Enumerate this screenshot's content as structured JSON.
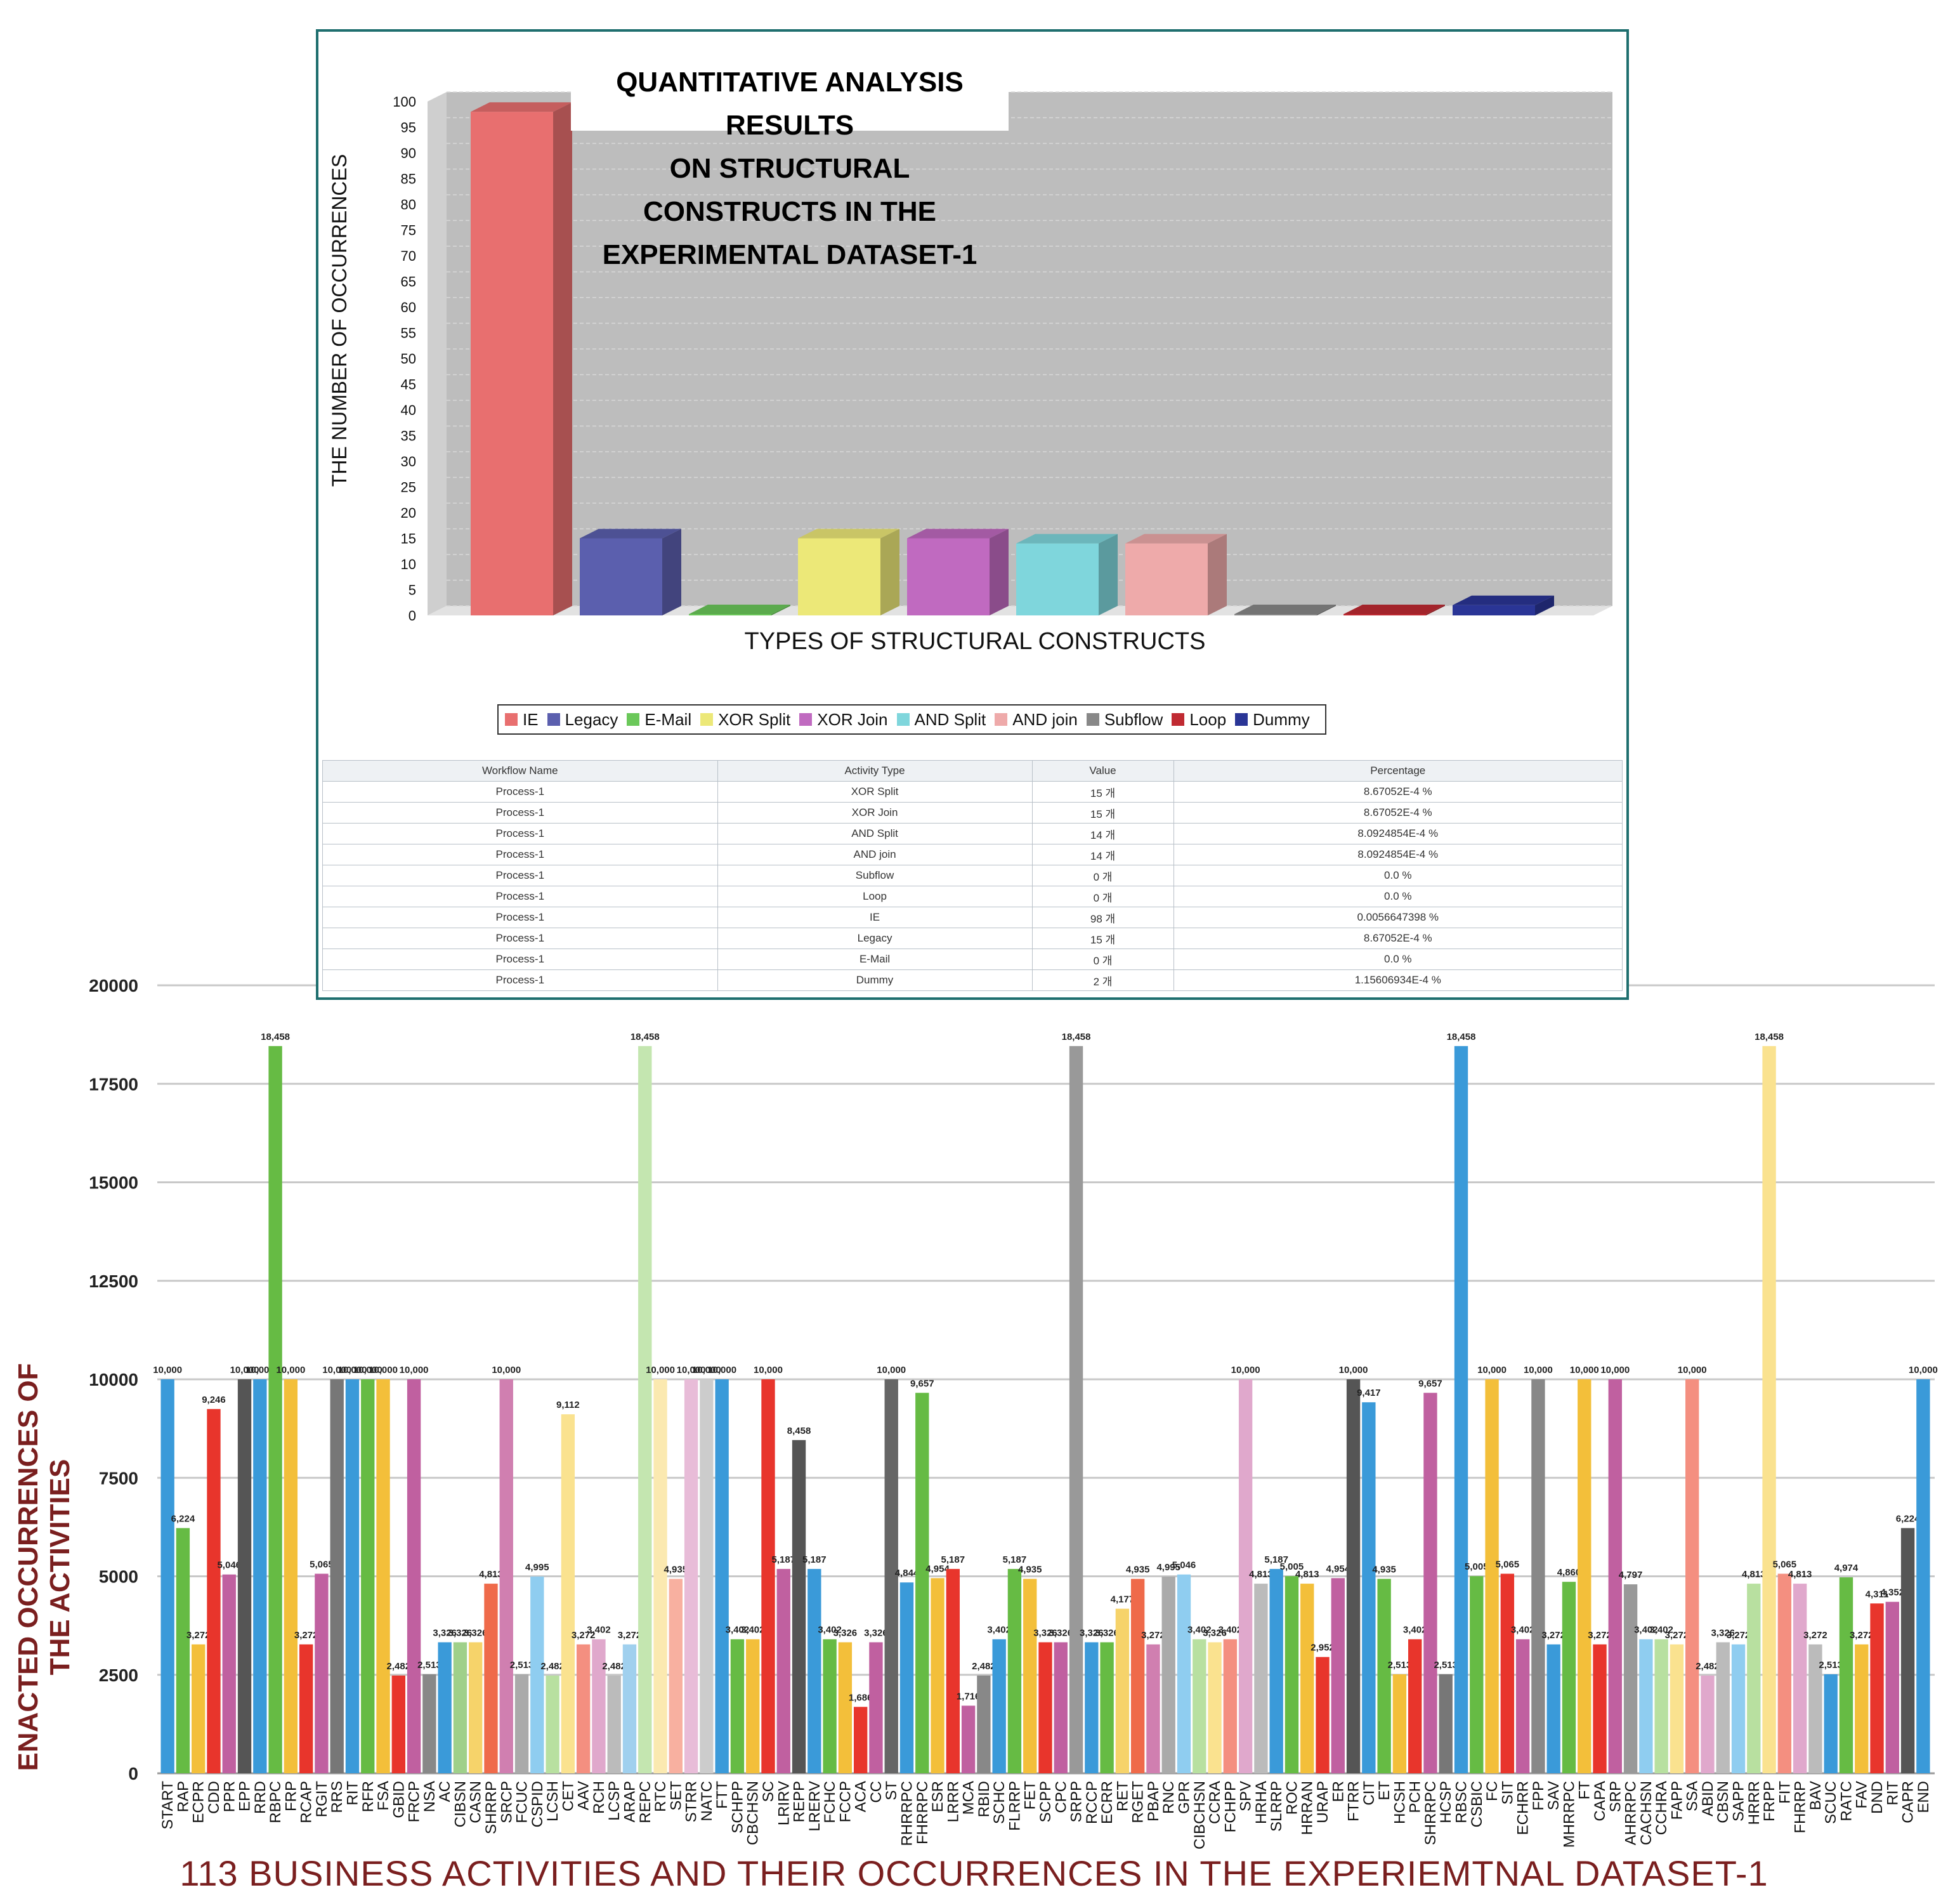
{
  "bottom_chart": {
    "title": "113 BUSINESS ACTIVITIES AND THEIR OCCURRENCES IN THE EXPERIEMTNAL DATASET-1",
    "ylabel": "ENACTED OCCURRENCES OF THE ACTIVITIES",
    "y_ticks": [
      "0",
      "2500",
      "5000",
      "7500",
      "10000",
      "12500",
      "15000",
      "17500",
      "20000"
    ]
  },
  "inset": {
    "title_line1": "QUANTITATIVE ANALYSIS RESULTS",
    "title_line2": "ON STRUCTURAL CONSTRUCTS IN THE EXPERIMENTAL DATASET-1",
    "ylabel": "THE NUMBER OF OCCURRENCES",
    "xlabel": "TYPES OF STRUCTURAL CONSTRUCTS",
    "y_ticks": [
      "0",
      "5",
      "10",
      "15",
      "20",
      "25",
      "30",
      "35",
      "40",
      "45",
      "50",
      "55",
      "60",
      "65",
      "70",
      "75",
      "80",
      "85",
      "90",
      "95",
      "100"
    ],
    "legend": [
      {
        "label": "IE",
        "color": "#e86f6f"
      },
      {
        "label": "Legacy",
        "color": "#5b5fae"
      },
      {
        "label": "E-Mail",
        "color": "#6bc85a"
      },
      {
        "label": "XOR Split",
        "color": "#ece878"
      },
      {
        "label": "XOR Join",
        "color": "#c06ac0"
      },
      {
        "label": "AND Split",
        "color": "#7fd6dc"
      },
      {
        "label": "AND join",
        "color": "#eeaaaa"
      },
      {
        "label": "Subflow",
        "color": "#888888"
      },
      {
        "label": "Loop",
        "color": "#c02a32"
      },
      {
        "label": "Dummy",
        "color": "#2a3596"
      }
    ],
    "table": {
      "headers": [
        "Workflow Name",
        "Activity Type",
        "Value",
        "Percentage"
      ],
      "rows": [
        [
          "Process-1",
          "XOR Split",
          "15 개",
          "8.67052E-4 %"
        ],
        [
          "Process-1",
          "XOR Join",
          "15 개",
          "8.67052E-4 %"
        ],
        [
          "Process-1",
          "AND Split",
          "14 개",
          "8.0924854E-4 %"
        ],
        [
          "Process-1",
          "AND join",
          "14 개",
          "8.0924854E-4 %"
        ],
        [
          "Process-1",
          "Subflow",
          "0 개",
          "0.0 %"
        ],
        [
          "Process-1",
          "Loop",
          "0 개",
          "0.0 %"
        ],
        [
          "Process-1",
          "IE",
          "98 개",
          "0.0056647398 %"
        ],
        [
          "Process-1",
          "Legacy",
          "15 개",
          "8.67052E-4 %"
        ],
        [
          "Process-1",
          "E-Mail",
          "0 개",
          "0.0 %"
        ],
        [
          "Process-1",
          "Dummy",
          "2 개",
          "1.15606934E-4 %"
        ]
      ]
    }
  },
  "chart_data": [
    {
      "type": "bar",
      "title": "QUANTITATIVE ANALYSIS RESULTS ON STRUCTURAL CONSTRUCTS IN THE EXPERIMENTAL DATASET-1",
      "xlabel": "TYPES OF STRUCTURAL CONSTRUCTS",
      "ylabel": "THE NUMBER OF OCCURRENCES",
      "ylim": [
        0,
        100
      ],
      "categories": [
        "IE",
        "Legacy",
        "E-Mail",
        "XOR Split",
        "XOR Join",
        "AND Split",
        "AND join",
        "Subflow",
        "Loop",
        "Dummy"
      ],
      "values": [
        98,
        15,
        0,
        15,
        15,
        14,
        14,
        0,
        0,
        2
      ],
      "grid": true,
      "legend": "bottom"
    },
    {
      "type": "bar",
      "title": "113 BUSINESS ACTIVITIES AND THEIR OCCURRENCES IN THE EXPERIEMTNAL DATASET-1",
      "ylabel": "ENACTED OCCURRENCES OF THE ACTIVITIES",
      "ylim": [
        0,
        20000
      ],
      "grid": true,
      "categories": [
        "START",
        "RAP",
        "ECPR",
        "CDD",
        "PPR",
        "EPP",
        "RRD",
        "RBPC",
        "FRP",
        "RCAP",
        "RGIT",
        "RRS",
        "RIT",
        "RFR",
        "FSA",
        "GBID",
        "FRCP",
        "NSA",
        "AC",
        "CIBSN",
        "CASN",
        "SHRRP",
        "SRCP",
        "FCUC",
        "CSPID",
        "LCSH",
        "CET",
        "AAV",
        "RCH",
        "LCSP",
        "ARAP",
        "REPC",
        "RTC",
        "SET",
        "STRR",
        "NATC",
        "FTT",
        "SCHPP",
        "CBCHSN",
        "SC",
        "LRIRV",
        "REPP",
        "LRERV",
        "FCHC",
        "FCCP",
        "ACA",
        "CC",
        "ST",
        "RHRRPC",
        "FHRRPC",
        "ESR",
        "LRRR",
        "MCA",
        "RBID",
        "SCHC",
        "FLRRP",
        "FET",
        "SCPP",
        "CPC",
        "SRPP",
        "RCCP",
        "ECRR",
        "RET",
        "RGET",
        "PBAP",
        "RNC",
        "GPR",
        "CIBCHSN",
        "CCRA",
        "FCHPP",
        "SPV",
        "HRHA",
        "SLRRP",
        "ROC",
        "HRRAN",
        "URAP",
        "ER",
        "FTRR",
        "CIT",
        "ET",
        "HCSH",
        "PCH",
        "SHRRPC",
        "HCSP",
        "RBSC",
        "CSBIC",
        "FC",
        "SIT",
        "ECHRR",
        "FPP",
        "SAV",
        "MHRRPC",
        "FT",
        "CAPA",
        "SRP",
        "AHRRPC",
        "CACHSN",
        "CCHRA",
        "FAPP",
        "SSA",
        "ABID",
        "CBSN",
        "SAPP",
        "HRRR",
        "FRPP",
        "FIT",
        "FHRRP",
        "BAV",
        "SCUC",
        "RATC",
        "FAV",
        "DND",
        "RIT",
        "CAPR",
        "END"
      ],
      "values": [
        10000,
        6224,
        3272,
        9246,
        5046,
        10000,
        10000,
        18458,
        10000,
        3272,
        5065,
        10000,
        10000,
        10000,
        10000,
        2482,
        10000,
        2513,
        3326,
        3326,
        3326,
        4813,
        10000,
        2513,
        4995,
        2482,
        9112,
        3272,
        3402,
        2482,
        3272,
        18458,
        10000,
        4935,
        10000,
        10000,
        10000,
        3402,
        3402,
        10000,
        5187,
        8458,
        5187,
        3402,
        3326,
        1686,
        3326,
        10000,
        4844,
        9657,
        4954,
        5187,
        1716,
        2482,
        3402,
        5187,
        4935,
        3326,
        3326,
        18458,
        3326,
        3326,
        4177,
        4935,
        3272,
        4995,
        5046,
        3402,
        3326,
        3402,
        10000,
        4813,
        5187,
        5005,
        4813,
        2952,
        4954,
        10000,
        9417,
        4935,
        2513,
        3402,
        9657,
        2513,
        18458,
        5005,
        10000,
        5065,
        3402,
        10000,
        3272,
        4860,
        10000,
        3272,
        10000,
        4797,
        3402,
        3402,
        3272,
        10000,
        2482,
        3326,
        3272,
        4813,
        18458,
        5065,
        4813,
        3272,
        2513,
        4974,
        3272,
        4311,
        4352,
        6224,
        10000
      ],
      "value_labels": [
        "10,000",
        "6,224",
        "3,272",
        "9,246",
        "5,046",
        "10,000",
        "10,000",
        "18,458",
        "10,000",
        "3,272",
        "5,065",
        "10,000",
        "10,000",
        "10,000",
        "10,000",
        "2,482",
        "10,000",
        "2,513",
        "3,326",
        "3,326",
        "3,326",
        "4,813",
        "10,000",
        "2,513",
        "4,995",
        "2,482",
        "9,112",
        "3,272",
        "3,402",
        "2,482",
        "3,272",
        "18,458",
        "10,000",
        "4,935",
        "10,000",
        "10,000",
        "10,000",
        "3,402",
        "3,402",
        "10,000",
        "5,187",
        "8,458",
        "5,187",
        "3,402",
        "3,326",
        "1,686",
        "3,326",
        "10,000",
        "4,844",
        "9,657",
        "4,954",
        "5,187",
        "1,716",
        "2,482",
        "3,402",
        "5,187",
        "4,935",
        "3,326",
        "3,326",
        "18,458",
        "3,326",
        "3,326",
        "4,177",
        "4,935",
        "3,272",
        "4,995",
        "5,046",
        "3,402",
        "3,326",
        "3,402",
        "10,000",
        "4,813",
        "5,187",
        "5,005",
        "4,813",
        "2,952",
        "4,954",
        "10,000",
        "9,417",
        "4,935",
        "2,513",
        "3,402",
        "9,657",
        "2,513",
        "18,458",
        "5,005",
        "10,000",
        "5,065",
        "3,402",
        "10,000",
        "3,272",
        "4,860",
        "10,000",
        "3,272",
        "10,000",
        "4,797",
        "3,402",
        "3,402",
        "3,272",
        "10,000",
        "2,482",
        "3,326",
        "3,272",
        "4,813",
        "18,458",
        "5,065",
        "4,813",
        "3,272",
        "2,513",
        "4,974",
        "3,272",
        "4,311",
        "4,352",
        "6,224",
        "10,000"
      ],
      "colors": [
        "#3a9ad9",
        "#66bb44",
        "#f3bf3a",
        "#e8352c",
        "#c060a0",
        "#555555",
        "#3a9ad9",
        "#66bb44",
        "#f3bf3a",
        "#e8352c",
        "#c060a0",
        "#777777",
        "#3a9ad9",
        "#66bb44",
        "#f3bf3a",
        "#e8352c",
        "#c060a0",
        "#888888",
        "#3a9ad9",
        "#9fd08a",
        "#f6d36a",
        "#ef6a4a",
        "#d07fb0",
        "#aaaaaa",
        "#8fcdf0",
        "#b8e0a0",
        "#fae28f",
        "#f48f80",
        "#e0a8cc",
        "#bbbbbb",
        "#a0d0ee",
        "#c4e6b0",
        "#fbe9b0",
        "#f8b0a0",
        "#e8bcd8",
        "#cccccc",
        "#3a9ad9",
        "#66bb44",
        "#f3bf3a",
        "#e8352c",
        "#c060a0",
        "#555555",
        "#3a9ad9",
        "#66bb44",
        "#f3bf3a",
        "#e8352c",
        "#c060a0",
        "#666666",
        "#3a9ad9",
        "#66bb44",
        "#f3bf3a",
        "#e8352c",
        "#c060a0",
        "#888888",
        "#3a9ad9",
        "#66bb44",
        "#f3bf3a",
        "#e8352c",
        "#c060a0",
        "#999999",
        "#3a9ad9",
        "#66bb44",
        "#f6d36a",
        "#ef6a4a",
        "#d07fb0",
        "#aaaaaa",
        "#8fcdf0",
        "#b8e0a0",
        "#fae28f",
        "#f48f80",
        "#e0a8cc",
        "#bbbbbb",
        "#3a9ad9",
        "#66bb44",
        "#f3bf3a",
        "#e8352c",
        "#c060a0",
        "#555555",
        "#3a9ad9",
        "#66bb44",
        "#f3bf3a",
        "#e8352c",
        "#c060a0",
        "#777777",
        "#3a9ad9",
        "#66bb44",
        "#f3bf3a",
        "#e8352c",
        "#c060a0",
        "#888888",
        "#3a9ad9",
        "#66bb44",
        "#f3bf3a",
        "#e8352c",
        "#c060a0",
        "#999999",
        "#8fcdf0",
        "#b8e0a0",
        "#fae28f",
        "#f48f80",
        "#e0a8cc",
        "#bbbbbb",
        "#8fcdf0",
        "#b8e0a0",
        "#fae28f",
        "#f48f80",
        "#e0a8cc",
        "#bbbbbb",
        "#3a9ad9",
        "#66bb44",
        "#f3bf3a",
        "#e8352c",
        "#c060a0",
        "#555555",
        "#3a9ad9"
      ]
    }
  ]
}
